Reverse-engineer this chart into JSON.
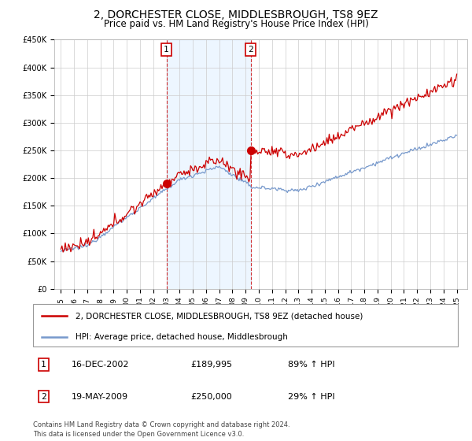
{
  "title": "2, DORCHESTER CLOSE, MIDDLESBROUGH, TS8 9EZ",
  "subtitle": "Price paid vs. HM Land Registry's House Price Index (HPI)",
  "red_label": "2, DORCHESTER CLOSE, MIDDLESBROUGH, TS8 9EZ (detached house)",
  "blue_label": "HPI: Average price, detached house, Middlesbrough",
  "transaction1_date": "16-DEC-2002",
  "transaction1_price": 189995,
  "transaction1_hpi": "89% ↑ HPI",
  "transaction2_date": "19-MAY-2009",
  "transaction2_price": 250000,
  "transaction2_hpi": "29% ↑ HPI",
  "footer": "Contains HM Land Registry data © Crown copyright and database right 2024.\nThis data is licensed under the Open Government Licence v3.0.",
  "ymin": 0,
  "ymax": 450000,
  "yticks": [
    0,
    50000,
    100000,
    150000,
    200000,
    250000,
    300000,
    350000,
    400000,
    450000
  ],
  "plot_background": "#ffffff",
  "red_color": "#cc0000",
  "blue_color": "#7799cc",
  "shade_color": "#ddeeff",
  "t1_year": 2003.0,
  "t2_year": 2009.38
}
